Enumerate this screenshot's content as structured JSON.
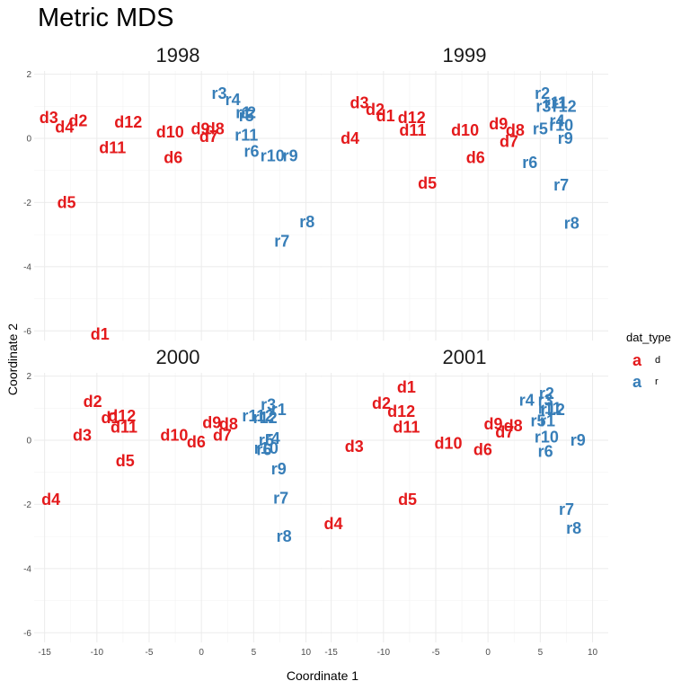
{
  "chart_data": {
    "type": "scatter",
    "title": "Metric MDS",
    "xlabel": "Coordinate 1",
    "ylabel": "Coordinate 2",
    "xlim": [
      -16,
      11.5
    ],
    "ylim": [
      -6.3,
      2.1
    ],
    "x_ticks": [
      -15,
      -10,
      -5,
      0,
      5,
      10
    ],
    "y_ticks": [
      2,
      0,
      -2,
      -4,
      -6
    ],
    "grid": true,
    "legend": {
      "title": "dat_type",
      "position": "right",
      "key_glyph": "a",
      "entries": [
        {
          "name": "d",
          "color": "#e41a1c"
        },
        {
          "name": "r",
          "color": "#377eb8"
        }
      ]
    },
    "panels": [
      {
        "year": "1998",
        "points": [
          {
            "label": "d1",
            "type": "d",
            "x": -9.7,
            "y": -6.1
          },
          {
            "label": "d2",
            "type": "d",
            "x": -11.8,
            "y": 0.55
          },
          {
            "label": "d3",
            "type": "d",
            "x": -14.6,
            "y": 0.65
          },
          {
            "label": "d4",
            "type": "d",
            "x": -13.1,
            "y": 0.35
          },
          {
            "label": "d5",
            "type": "d",
            "x": -12.9,
            "y": -2.0
          },
          {
            "label": "d6",
            "type": "d",
            "x": -2.7,
            "y": -0.6
          },
          {
            "label": "d7",
            "type": "d",
            "x": 0.7,
            "y": 0.05
          },
          {
            "label": "d8",
            "type": "d",
            "x": 1.3,
            "y": 0.3
          },
          {
            "label": "d9",
            "type": "d",
            "x": -0.1,
            "y": 0.3
          },
          {
            "label": "d10",
            "type": "d",
            "x": -3.0,
            "y": 0.2
          },
          {
            "label": "d11",
            "type": "d",
            "x": -8.5,
            "y": -0.3
          },
          {
            "label": "d12",
            "type": "d",
            "x": -7.0,
            "y": 0.5
          },
          {
            "label": "r1",
            "type": "r",
            "x": 4.0,
            "y": 0.8
          },
          {
            "label": "r2",
            "type": "r",
            "x": 4.5,
            "y": 0.8
          },
          {
            "label": "r3",
            "type": "r",
            "x": 1.7,
            "y": 1.4
          },
          {
            "label": "r4",
            "type": "r",
            "x": 3.0,
            "y": 1.2
          },
          {
            "label": "r5",
            "type": "r",
            "x": 4.3,
            "y": 0.7
          },
          {
            "label": "r6",
            "type": "r",
            "x": 4.8,
            "y": -0.4
          },
          {
            "label": "r7",
            "type": "r",
            "x": 7.7,
            "y": -3.2
          },
          {
            "label": "r8",
            "type": "r",
            "x": 10.1,
            "y": -2.6
          },
          {
            "label": "r9",
            "type": "r",
            "x": 8.5,
            "y": -0.55
          },
          {
            "label": "r10",
            "type": "r",
            "x": 6.8,
            "y": -0.55
          },
          {
            "label": "r11",
            "type": "r",
            "x": 4.3,
            "y": 0.1
          }
        ]
      },
      {
        "year": "1999",
        "points": [
          {
            "label": "d1",
            "type": "d",
            "x": -9.8,
            "y": 0.7
          },
          {
            "label": "d2",
            "type": "d",
            "x": -10.8,
            "y": 0.9
          },
          {
            "label": "d3",
            "type": "d",
            "x": -12.3,
            "y": 1.1
          },
          {
            "label": "d4",
            "type": "d",
            "x": -13.2,
            "y": 0.0
          },
          {
            "label": "d5",
            "type": "d",
            "x": -5.8,
            "y": -1.4
          },
          {
            "label": "d6",
            "type": "d",
            "x": -1.2,
            "y": -0.6
          },
          {
            "label": "d7",
            "type": "d",
            "x": 2.0,
            "y": -0.1
          },
          {
            "label": "d8",
            "type": "d",
            "x": 2.6,
            "y": 0.25
          },
          {
            "label": "d9",
            "type": "d",
            "x": 1.0,
            "y": 0.45
          },
          {
            "label": "d10",
            "type": "d",
            "x": -2.2,
            "y": 0.25
          },
          {
            "label": "d11",
            "type": "d",
            "x": -7.2,
            "y": 0.25
          },
          {
            "label": "d12",
            "type": "d",
            "x": -7.3,
            "y": 0.65
          },
          {
            "label": "r1",
            "type": "r",
            "x": 6.8,
            "y": 1.1
          },
          {
            "label": "r2",
            "type": "r",
            "x": 5.2,
            "y": 1.4
          },
          {
            "label": "r3",
            "type": "r",
            "x": 5.3,
            "y": 1.0
          },
          {
            "label": "r4",
            "type": "r",
            "x": 6.6,
            "y": 0.55
          },
          {
            "label": "r5",
            "type": "r",
            "x": 5.0,
            "y": 0.3
          },
          {
            "label": "r6",
            "type": "r",
            "x": 4.0,
            "y": -0.75
          },
          {
            "label": "r7",
            "type": "r",
            "x": 7.0,
            "y": -1.45
          },
          {
            "label": "r8",
            "type": "r",
            "x": 8.0,
            "y": -2.65
          },
          {
            "label": "r9",
            "type": "r",
            "x": 7.4,
            "y": 0.0
          },
          {
            "label": "r10",
            "type": "r",
            "x": 7.0,
            "y": 0.4
          },
          {
            "label": "r11",
            "type": "r",
            "x": 6.5,
            "y": 1.1
          },
          {
            "label": "r12",
            "type": "r",
            "x": 7.3,
            "y": 1.0
          }
        ]
      },
      {
        "year": "2000",
        "points": [
          {
            "label": "d1",
            "type": "d",
            "x": -8.7,
            "y": 0.7
          },
          {
            "label": "d2",
            "type": "d",
            "x": -10.4,
            "y": 1.2
          },
          {
            "label": "d3",
            "type": "d",
            "x": -11.4,
            "y": 0.15
          },
          {
            "label": "d4",
            "type": "d",
            "x": -14.4,
            "y": -1.85
          },
          {
            "label": "d5",
            "type": "d",
            "x": -7.3,
            "y": -0.65
          },
          {
            "label": "d6",
            "type": "d",
            "x": -0.5,
            "y": -0.05
          },
          {
            "label": "d7",
            "type": "d",
            "x": 2.0,
            "y": 0.15
          },
          {
            "label": "d8",
            "type": "d",
            "x": 2.6,
            "y": 0.5
          },
          {
            "label": "d9",
            "type": "d",
            "x": 1.0,
            "y": 0.55
          },
          {
            "label": "d10",
            "type": "d",
            "x": -2.6,
            "y": 0.15
          },
          {
            "label": "d11",
            "type": "d",
            "x": -7.4,
            "y": 0.4
          },
          {
            "label": "d12",
            "type": "d",
            "x": -7.6,
            "y": 0.75
          },
          {
            "label": "r1",
            "type": "r",
            "x": 7.4,
            "y": 0.95
          },
          {
            "label": "r2",
            "type": "r",
            "x": 6.2,
            "y": 0.75
          },
          {
            "label": "r3",
            "type": "r",
            "x": 6.4,
            "y": 1.1
          },
          {
            "label": "r4",
            "type": "r",
            "x": 6.8,
            "y": 0.05
          },
          {
            "label": "r5",
            "type": "r",
            "x": 6.2,
            "y": 0.0
          },
          {
            "label": "r6",
            "type": "r",
            "x": 6.0,
            "y": -0.3
          },
          {
            "label": "r7",
            "type": "r",
            "x": 7.6,
            "y": -1.8
          },
          {
            "label": "r8",
            "type": "r",
            "x": 7.9,
            "y": -3.0
          },
          {
            "label": "r9",
            "type": "r",
            "x": 7.4,
            "y": -0.9
          },
          {
            "label": "r10",
            "type": "r",
            "x": 6.2,
            "y": -0.25
          },
          {
            "label": "r11",
            "type": "r",
            "x": 5.0,
            "y": 0.75
          },
          {
            "label": "r12",
            "type": "r",
            "x": 6.1,
            "y": 0.7
          }
        ]
      },
      {
        "year": "2001",
        "points": [
          {
            "label": "d1",
            "type": "d",
            "x": -7.8,
            "y": 1.65
          },
          {
            "label": "d2",
            "type": "d",
            "x": -10.2,
            "y": 1.15
          },
          {
            "label": "d3",
            "type": "d",
            "x": -12.8,
            "y": -0.2
          },
          {
            "label": "d4",
            "type": "d",
            "x": -14.8,
            "y": -2.6
          },
          {
            "label": "d5",
            "type": "d",
            "x": -7.7,
            "y": -1.85
          },
          {
            "label": "d6",
            "type": "d",
            "x": -0.5,
            "y": -0.3
          },
          {
            "label": "d7",
            "type": "d",
            "x": 1.6,
            "y": 0.25
          },
          {
            "label": "d8",
            "type": "d",
            "x": 2.4,
            "y": 0.45
          },
          {
            "label": "d9",
            "type": "d",
            "x": 0.5,
            "y": 0.5
          },
          {
            "label": "d10",
            "type": "d",
            "x": -3.8,
            "y": -0.1
          },
          {
            "label": "d11",
            "type": "d",
            "x": -7.8,
            "y": 0.4
          },
          {
            "label": "d12",
            "type": "d",
            "x": -8.3,
            "y": 0.9
          },
          {
            "label": "r1",
            "type": "r",
            "x": 5.7,
            "y": 0.6
          },
          {
            "label": "r2",
            "type": "r",
            "x": 5.6,
            "y": 1.45
          },
          {
            "label": "r3",
            "type": "r",
            "x": 5.5,
            "y": 1.25
          },
          {
            "label": "r4",
            "type": "r",
            "x": 3.7,
            "y": 1.25
          },
          {
            "label": "r5",
            "type": "r",
            "x": 4.8,
            "y": 0.6
          },
          {
            "label": "r6",
            "type": "r",
            "x": 5.5,
            "y": -0.35
          },
          {
            "label": "r7",
            "type": "r",
            "x": 7.5,
            "y": -2.15
          },
          {
            "label": "r8",
            "type": "r",
            "x": 8.2,
            "y": -2.75
          },
          {
            "label": "r9",
            "type": "r",
            "x": 8.6,
            "y": 0.0
          },
          {
            "label": "r10",
            "type": "r",
            "x": 5.6,
            "y": 0.1
          },
          {
            "label": "r11",
            "type": "r",
            "x": 5.9,
            "y": 1.0
          },
          {
            "label": "r12",
            "type": "r",
            "x": 6.2,
            "y": 0.95
          }
        ]
      }
    ]
  }
}
